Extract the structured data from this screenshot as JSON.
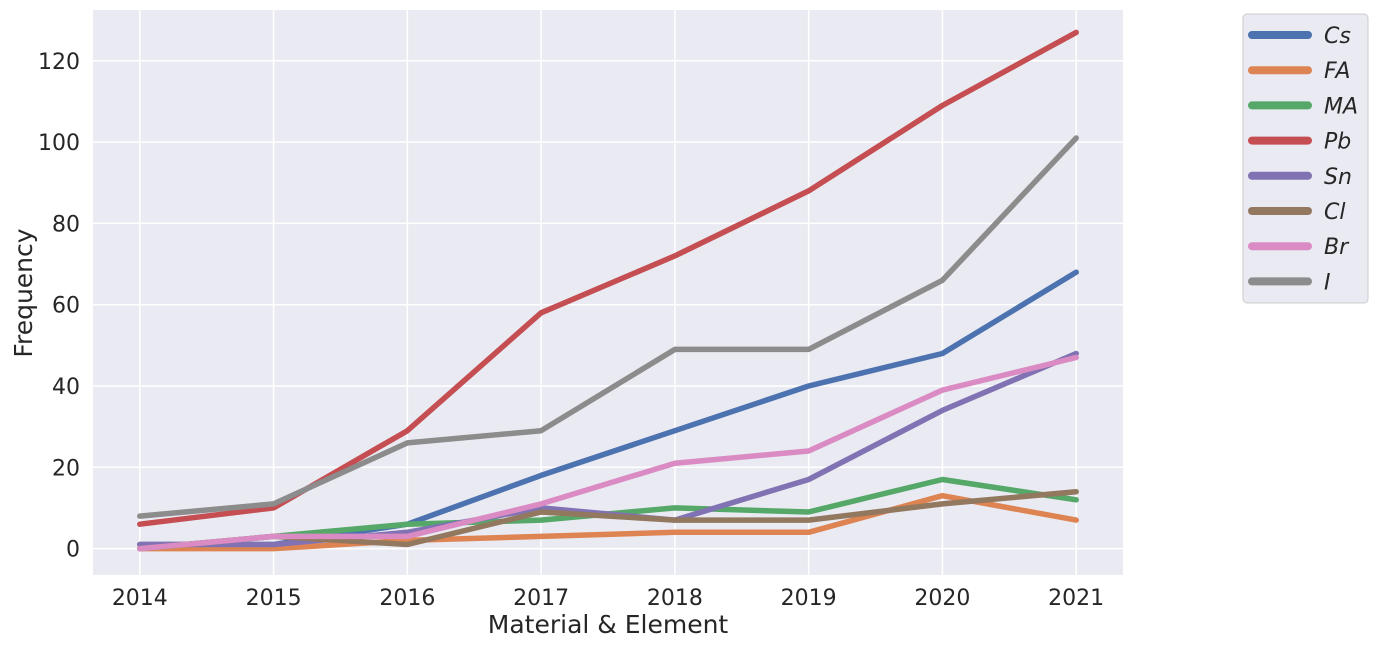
{
  "chart_data": {
    "type": "line",
    "title": "",
    "xlabel": "Material & Element",
    "ylabel": "Frequency",
    "x": [
      2014,
      2015,
      2016,
      2017,
      2018,
      2019,
      2020,
      2021
    ],
    "x_tick_labels": [
      "2014",
      "2015",
      "2016",
      "2017",
      "2018",
      "2019",
      "2020",
      "2021"
    ],
    "y_ticks": [
      0,
      20,
      40,
      60,
      80,
      100,
      120
    ],
    "y_tick_labels": [
      "0",
      "20",
      "40",
      "60",
      "80",
      "100",
      "120"
    ],
    "xlim": [
      2013.65,
      2021.35
    ],
    "ylim": [
      -6.5,
      132.5
    ],
    "grid": true,
    "legend_position": "outside-top-right",
    "series": [
      {
        "name": "Cs",
        "color": "#4c72b0",
        "values": [
          1,
          1,
          6,
          18,
          29,
          40,
          48,
          68
        ]
      },
      {
        "name": "FA",
        "color": "#dd8452",
        "values": [
          0,
          0,
          2,
          3,
          4,
          4,
          13,
          7
        ]
      },
      {
        "name": "MA",
        "color": "#55a868",
        "values": [
          0,
          3,
          6,
          7,
          10,
          9,
          17,
          12
        ]
      },
      {
        "name": "Pb",
        "color": "#c44e52",
        "values": [
          6,
          10,
          29,
          58,
          72,
          88,
          109,
          127
        ]
      },
      {
        "name": "Sn",
        "color": "#8172b3",
        "values": [
          1,
          1,
          4,
          10,
          7,
          17,
          34,
          48
        ]
      },
      {
        "name": "Cl",
        "color": "#937860",
        "values": [
          0,
          3,
          1,
          9,
          7,
          7,
          11,
          14
        ]
      },
      {
        "name": "Br",
        "color": "#da8bc3",
        "values": [
          0,
          3,
          3,
          11,
          21,
          24,
          39,
          47
        ]
      },
      {
        "name": "I",
        "color": "#8c8c8c",
        "values": [
          8,
          11,
          26,
          29,
          49,
          49,
          66,
          101
        ]
      }
    ]
  }
}
